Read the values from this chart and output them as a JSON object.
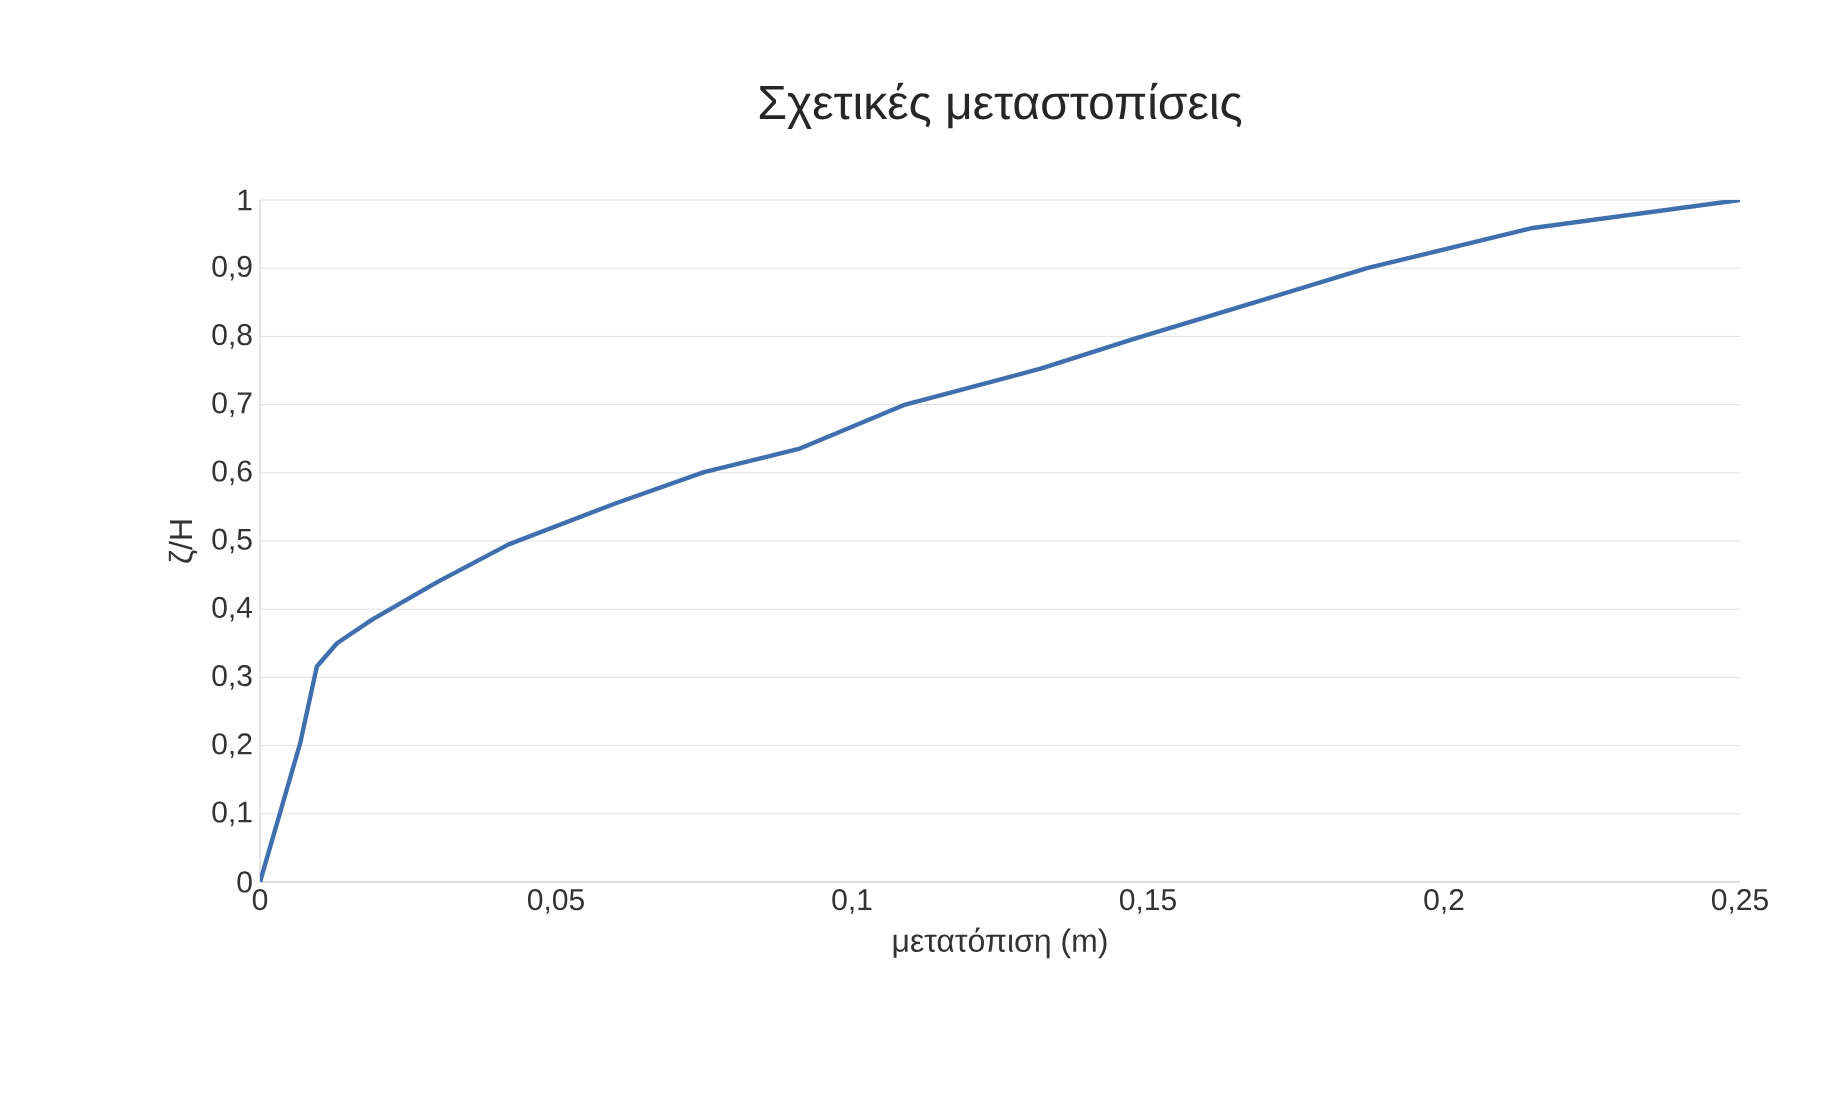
{
  "chart_data": {
    "type": "line",
    "title": "Σχετικές μεταστοπίσεις",
    "xlabel": "μετατόπιση (m)",
    "ylabel": "ζ/H",
    "x": [
      0,
      0.003,
      0.0068,
      0.0096,
      0.013,
      0.019,
      0.03,
      0.042,
      0.06,
      0.075,
      0.091,
      0.109,
      0.132,
      0.1475,
      0.17,
      0.187,
      0.215,
      0.25
    ],
    "series": [
      {
        "color": "#3f6fae",
        "values": [
          0,
          0.09,
          0.204,
          0.316,
          0.35,
          0.385,
          0.44,
          0.495,
          0.555,
          0.601,
          0.635,
          0.7,
          0.753,
          0.796,
          0.855,
          0.9,
          0.959,
          1
        ]
      }
    ],
    "xlim": [
      0,
      0.25
    ],
    "ylim": [
      0,
      1
    ],
    "xticks": [
      0,
      {
        "value": 0.05,
        "label": "0,05"
      },
      {
        "value": 0.1,
        "label": "0,1"
      },
      {
        "value": 0.15,
        "label": "0,15"
      },
      {
        "value": 0.2,
        "label": "0,2"
      },
      {
        "value": 0.25,
        "label": "0,25"
      }
    ],
    "yticks": [
      0,
      {
        "value": 0.1,
        "label": "0,1"
      },
      {
        "value": 0.2,
        "label": "0,2"
      },
      {
        "value": 0.3,
        "label": "0,3"
      },
      {
        "value": 0.4,
        "label": "0,4"
      },
      {
        "value": 0.5,
        "label": "0,5"
      },
      {
        "value": 0.6,
        "label": "0,6"
      },
      {
        "value": 0.7,
        "label": "0,7"
      },
      {
        "value": 0.8,
        "label": "0,8"
      },
      {
        "value": 0.9,
        "label": "0,9"
      },
      1
    ],
    "grid": "y",
    "marker": "none",
    "line_style": "solid"
  }
}
